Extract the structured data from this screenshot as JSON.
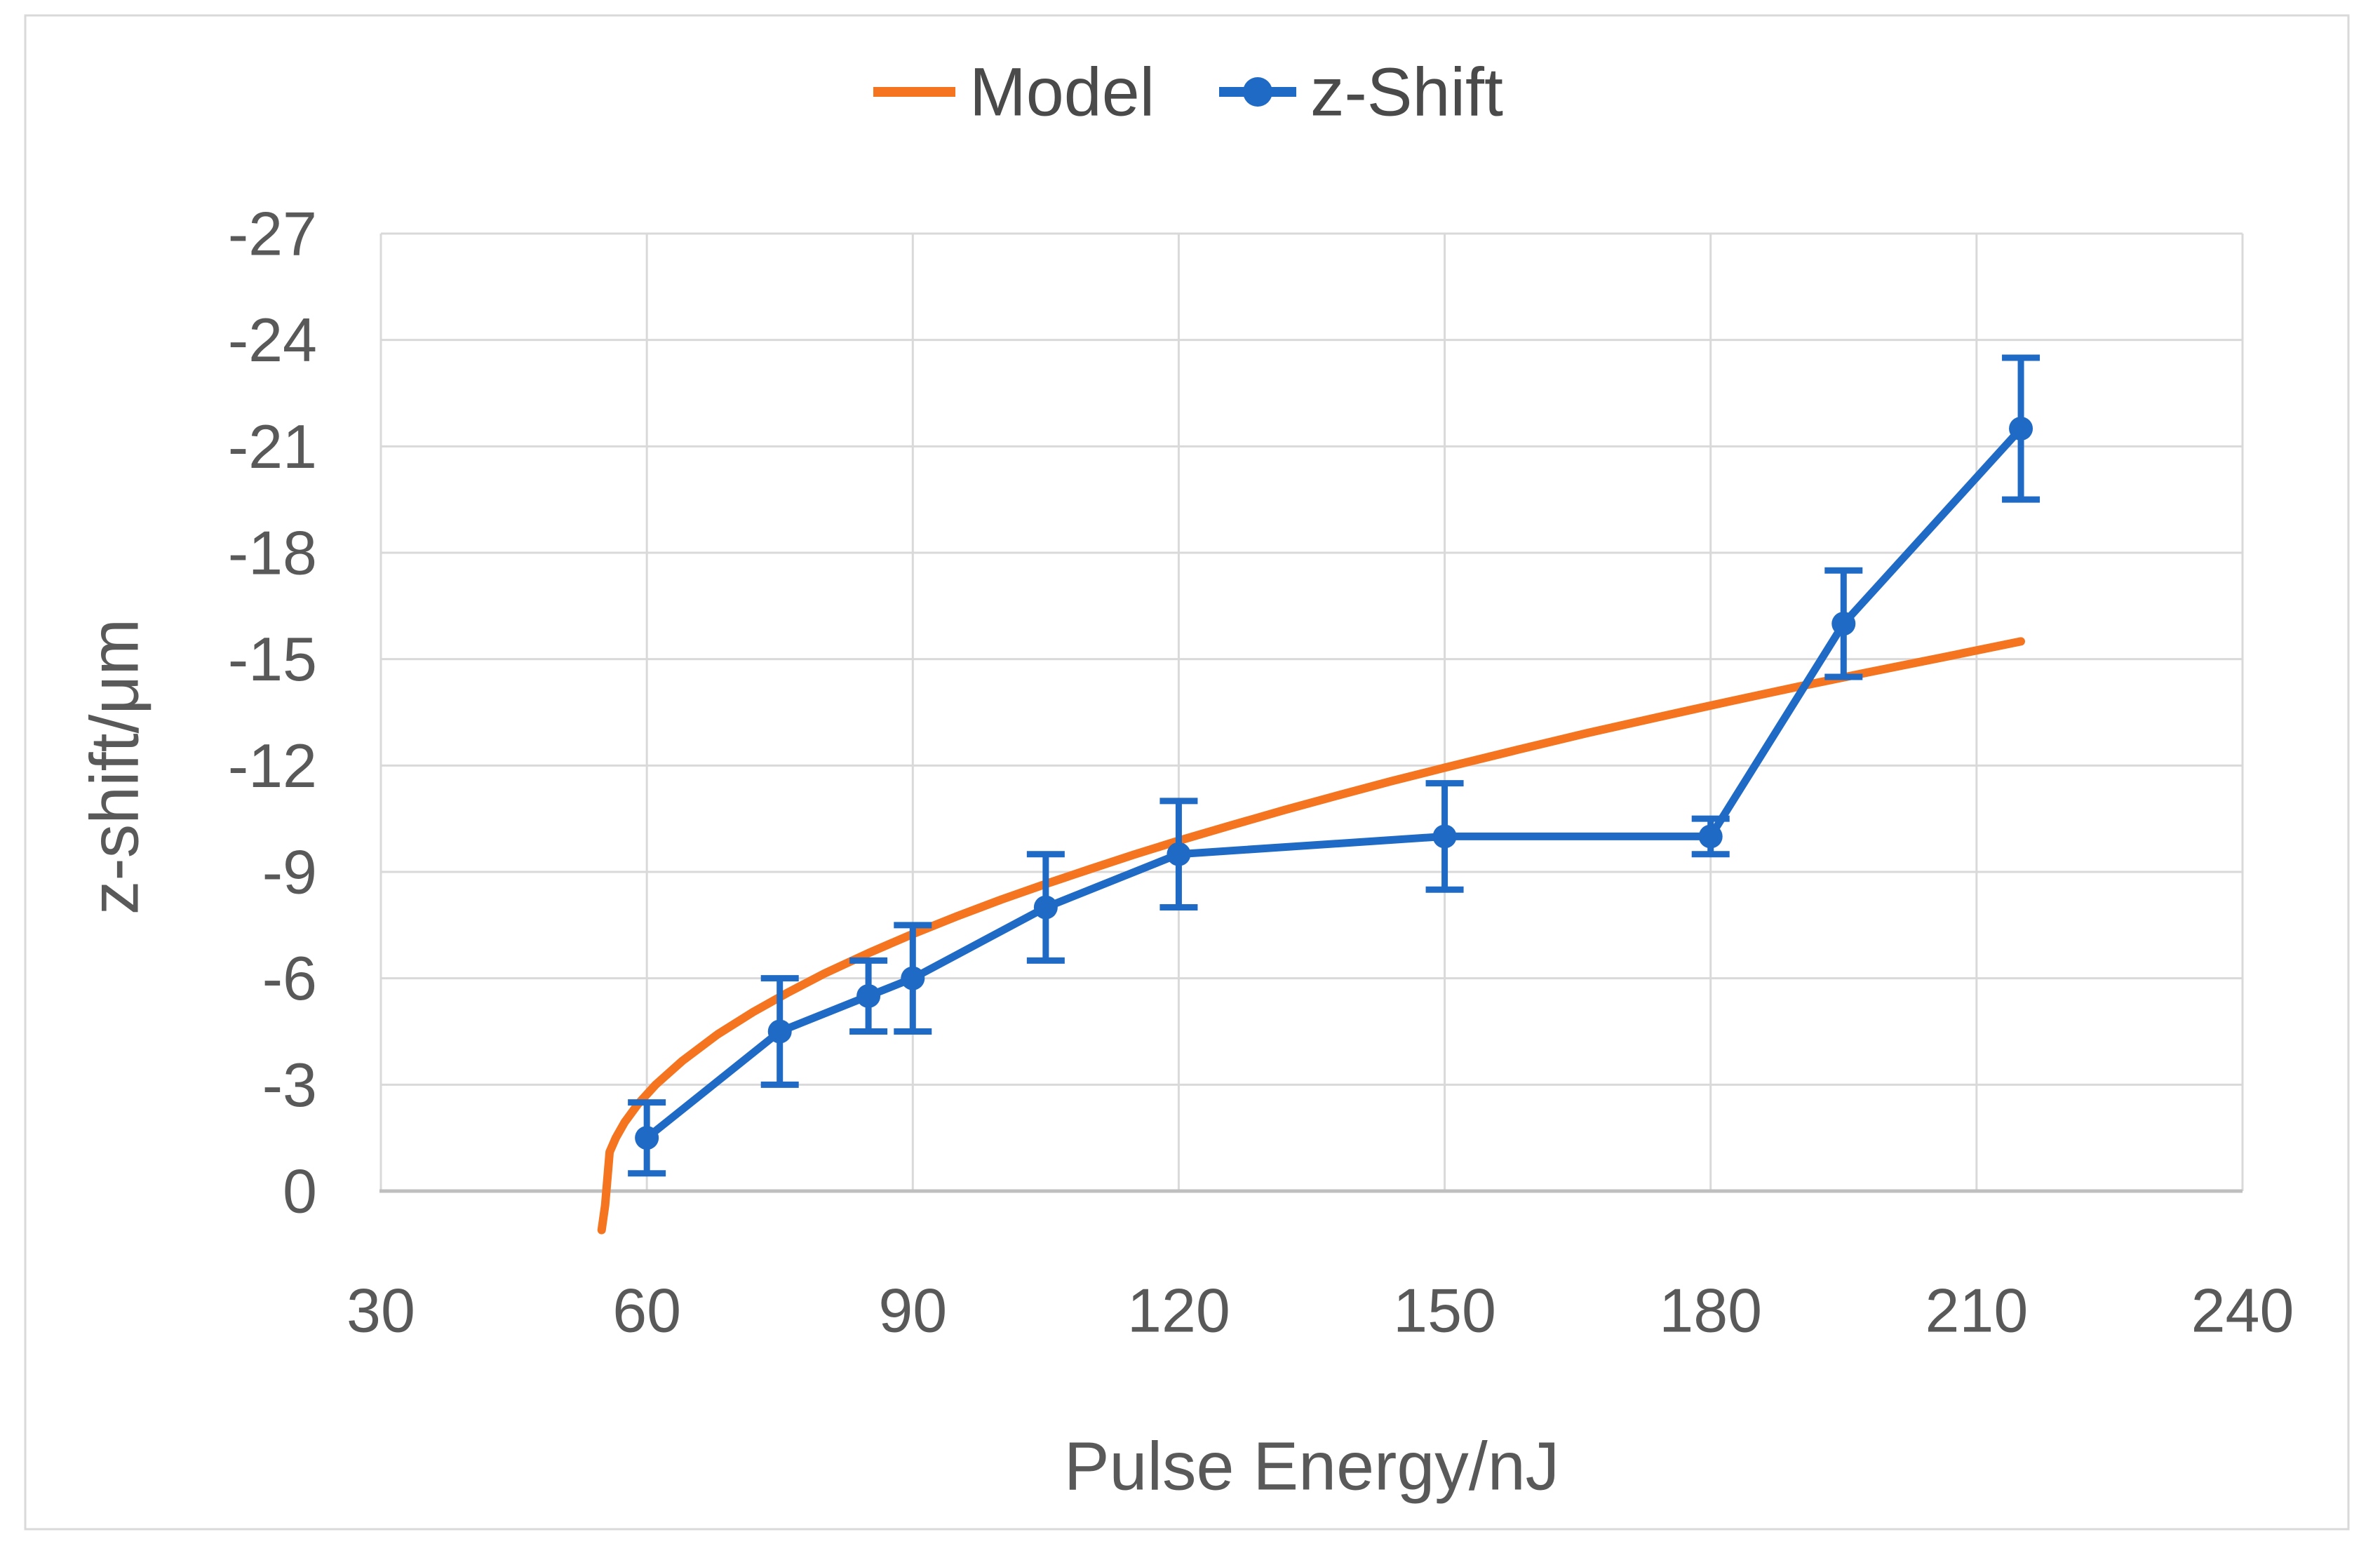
{
  "figure": {
    "background": "#ffffff",
    "border_color": "#d9d9d9",
    "gridline_color": "#d9d9d9",
    "axis_line_color": "#bfbfbf",
    "tick_text_color": "#595959",
    "legend_text_color": "#4a4a4a"
  },
  "legend": {
    "position": "top-center",
    "items": [
      {
        "label": "Model",
        "color": "#f4741f",
        "marker": "line"
      },
      {
        "label": "z-Shift",
        "color": "#1f6ac5",
        "marker": "line-circle"
      }
    ]
  },
  "chart_data": {
    "type": "line",
    "title": "",
    "xlabel": "Pulse Energy/nJ",
    "ylabel": "z-shift/μm",
    "xlim": [
      30,
      240
    ],
    "ylim_bottom_to_top": [
      0,
      -27
    ],
    "x_ticks": [
      30,
      60,
      90,
      120,
      150,
      180,
      210,
      240
    ],
    "y_ticks": [
      0,
      -3,
      -6,
      -9,
      -12,
      -15,
      -18,
      -21,
      -24,
      -27
    ],
    "grid": true,
    "legend_position": "top",
    "series": [
      {
        "name": "Model",
        "type": "line",
        "color": "#f4741f",
        "points": [
          [
            54.9,
            1.1
          ],
          [
            55.3,
            0.4
          ],
          [
            55.8,
            -1.1
          ],
          [
            56.5,
            -1.5
          ],
          [
            57.5,
            -1.94
          ],
          [
            59,
            -2.45
          ],
          [
            61,
            -3.0
          ],
          [
            64,
            -3.67
          ],
          [
            68,
            -4.42
          ],
          [
            72,
            -5.05
          ],
          [
            76,
            -5.61
          ],
          [
            80,
            -6.13
          ],
          [
            85,
            -6.71
          ],
          [
            90,
            -7.25
          ],
          [
            95,
            -7.75
          ],
          [
            100,
            -8.22
          ],
          [
            105,
            -8.66
          ],
          [
            110,
            -9.08
          ],
          [
            115,
            -9.49
          ],
          [
            120,
            -9.88
          ],
          [
            126,
            -10.32
          ],
          [
            132,
            -10.75
          ],
          [
            138,
            -11.16
          ],
          [
            144,
            -11.56
          ],
          [
            150,
            -11.94
          ],
          [
            158,
            -12.43
          ],
          [
            166,
            -12.91
          ],
          [
            174,
            -13.36
          ],
          [
            182,
            -13.8
          ],
          [
            190,
            -14.23
          ],
          [
            198,
            -14.64
          ],
          [
            206,
            -15.04
          ],
          [
            215,
            -15.5
          ]
        ]
      },
      {
        "name": "z-Shift",
        "type": "line+markers+error_bars",
        "color": "#1f6ac5",
        "points": [
          {
            "x": 60,
            "y": -1.5,
            "err": 1.0
          },
          {
            "x": 75,
            "y": -4.5,
            "err": 1.5
          },
          {
            "x": 85,
            "y": -5.5,
            "err": 1.0
          },
          {
            "x": 90,
            "y": -6.0,
            "err": 1.5
          },
          {
            "x": 105,
            "y": -8.0,
            "err": 1.5
          },
          {
            "x": 120,
            "y": -9.5,
            "err": 1.5
          },
          {
            "x": 150,
            "y": -10.0,
            "err": 1.5
          },
          {
            "x": 180,
            "y": -10.0,
            "err": 0.5
          },
          {
            "x": 195,
            "y": -16.0,
            "err": 1.5
          },
          {
            "x": 215,
            "y": -21.5,
            "err": 2.0
          }
        ]
      }
    ]
  }
}
